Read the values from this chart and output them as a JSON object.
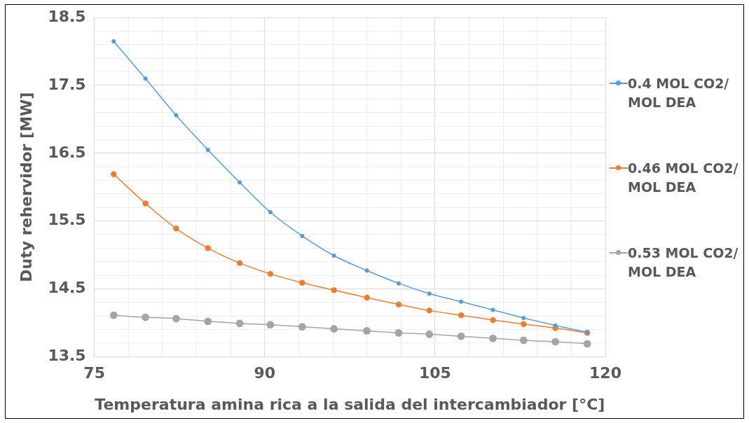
{
  "chart_data": {
    "type": "line",
    "xlabel": "Temperatura amina rica a la salida del intercambiador [°C]",
    "ylabel": "Duty rehervidor [MW]",
    "x": [
      76.7,
      79.5,
      82.2,
      85.0,
      87.8,
      90.5,
      93.3,
      96.1,
      99.0,
      101.8,
      104.5,
      107.3,
      110.1,
      112.8,
      115.6,
      118.4
    ],
    "series": [
      {
        "name": "0.4 MOL CO2/ MOL DEA",
        "color": "#5b9bd5",
        "values": [
          18.15,
          17.6,
          17.06,
          16.55,
          16.07,
          15.63,
          15.28,
          14.99,
          14.77,
          14.58,
          14.43,
          14.31,
          14.19,
          14.07,
          13.96,
          13.86
        ]
      },
      {
        "name": "0.46 MOL CO2/ MOL DEA",
        "color": "#ed7d31",
        "values": [
          16.19,
          15.76,
          15.39,
          15.1,
          14.88,
          14.72,
          14.59,
          14.48,
          14.37,
          14.27,
          14.18,
          14.11,
          14.04,
          13.98,
          13.92,
          13.85
        ]
      },
      {
        "name": "0.53 MOL CO2/ MOL DEA",
        "color": "#a5a5a5",
        "values": [
          14.11,
          14.08,
          14.06,
          14.02,
          13.99,
          13.97,
          13.94,
          13.91,
          13.88,
          13.85,
          13.83,
          13.8,
          13.77,
          13.74,
          13.72,
          13.69
        ]
      }
    ],
    "xlim": [
      75,
      120
    ],
    "xticks": [
      75,
      {
        "value": 78,
        "label": null
      },
      {
        "value": 81,
        "label": null
      },
      {
        "value": 84,
        "label": null
      },
      {
        "value": 87,
        "label": null
      },
      90,
      {
        "value": 93,
        "label": null
      },
      {
        "value": 96,
        "label": null
      },
      {
        "value": 99,
        "label": null
      },
      {
        "value": 102,
        "label": null
      },
      105,
      {
        "value": 108,
        "label": null
      },
      {
        "value": 111,
        "label": null
      },
      {
        "value": 114,
        "label": null
      },
      {
        "value": 117,
        "label": null
      },
      120
    ],
    "ylim": [
      13.5,
      18.5
    ],
    "yticks": [
      13.5,
      {
        "value": 13.7,
        "label": null
      },
      {
        "value": 13.9,
        "label": null
      },
      {
        "value": 14.1,
        "label": null
      },
      {
        "value": 14.3,
        "label": null
      },
      14.5,
      {
        "value": 14.7,
        "label": null
      },
      {
        "value": 14.9,
        "label": null
      },
      {
        "value": 15.1,
        "label": null
      },
      {
        "value": 15.3,
        "label": null
      },
      15.5,
      {
        "value": 15.7,
        "label": null
      },
      {
        "value": 15.9,
        "label": null
      },
      {
        "value": 16.1,
        "label": null
      },
      {
        "value": 16.3,
        "label": null
      },
      16.5,
      {
        "value": 16.7,
        "label": null
      },
      {
        "value": 16.9,
        "label": null
      },
      {
        "value": 17.1,
        "label": null
      },
      {
        "value": 17.3,
        "label": null
      },
      17.5,
      {
        "value": 17.7,
        "label": null
      },
      {
        "value": 17.9,
        "label": null
      },
      {
        "value": 18.1,
        "label": null
      },
      {
        "value": 18.3,
        "label": null
      },
      18.5
    ],
    "grid": true,
    "legend": "right",
    "marker": "circle",
    "line_style": "solid"
  }
}
